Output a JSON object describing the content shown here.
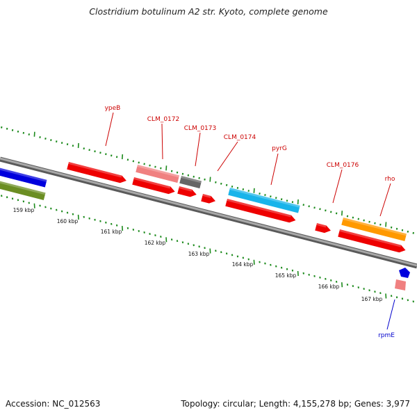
{
  "title": "Clostridium botulinum A2 str. Kyoto, complete genome",
  "footer": {
    "accession": "Accession: NC_012563",
    "summary": "Topology: circular; Length: 4,155,278 bp; Genes: 3,977"
  },
  "colors": {
    "backbone": "#8a8a8a",
    "tick": "#1c8a1c",
    "label_red": "#cc0000",
    "label_blue": "#0000cc",
    "gene_red": "#ee0000",
    "gene_pink": "#f08080",
    "gene_gray": "#666666",
    "gene_cyan": "#19b4ea",
    "gene_orange": "#ff9900",
    "gene_blue": "#0000dd",
    "gene_olive": "#6b8e23"
  },
  "kbp_labels": [
    "159 kbp",
    "160 kbp",
    "161 kbp",
    "162 kbp",
    "163 kbp",
    "164 kbp",
    "165 kbp",
    "166 kbp",
    "167 kbp"
  ],
  "gene_labels": [
    "ypeB",
    "CLM_0172",
    "CLM_0173",
    "CLM_0174",
    "pyrG",
    "CLM_0176",
    "rho",
    "rpmE"
  ]
}
